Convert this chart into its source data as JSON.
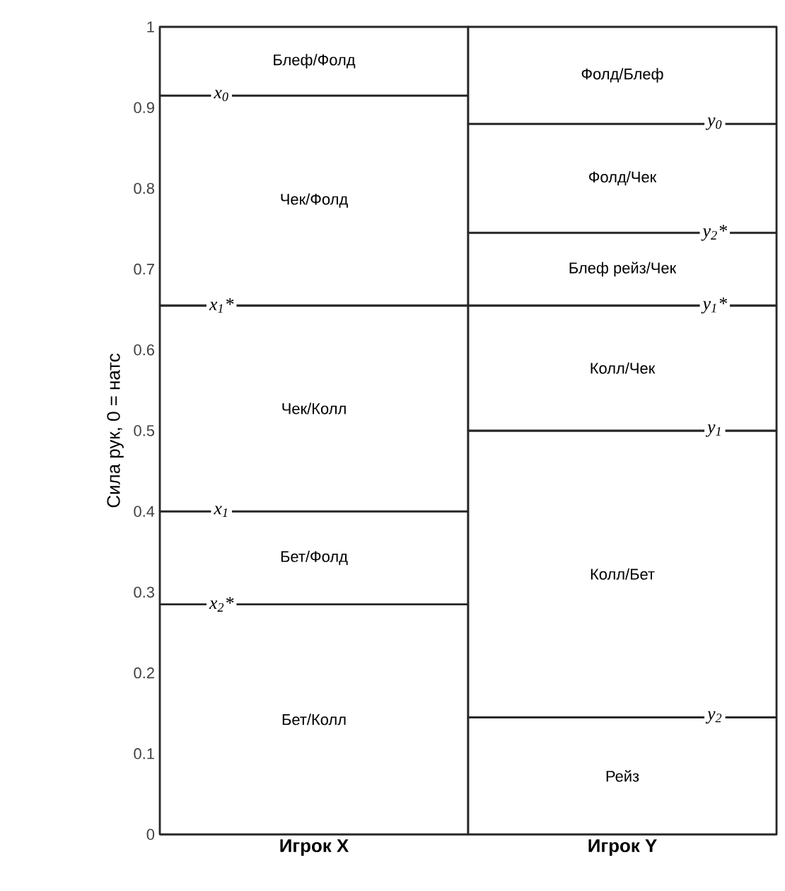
{
  "chart_data": {
    "type": "bar",
    "stacked": true,
    "ylabel": "Сила рук, 0 = натс",
    "categories": [
      "Игрок X",
      "Игрок Y"
    ],
    "series": [
      {
        "color": "#ffffff",
        "values": [
          0.285,
          0.145
        ]
      },
      {
        "color": "#ffffff",
        "values": [
          0.115,
          0.355
        ]
      },
      {
        "color": "#ffffff",
        "values": [
          0.255,
          0.155
        ]
      },
      {
        "color": "#ffffff",
        "values": [
          0.26,
          0.09
        ]
      },
      {
        "color": "#ffffff",
        "values": [
          0.085,
          0.135
        ]
      },
      {
        "color": "#ffffff",
        "values": [
          null,
          0.12
        ]
      }
    ],
    "ylim": [
      0,
      1
    ],
    "yticks": [
      0,
      0.1,
      0.2,
      0.3,
      0.4,
      0.5,
      0.6,
      0.7,
      0.8,
      0.9,
      1
    ],
    "annotations": [
      "Блеф/Фолд",
      "Чек/Фолд",
      "Чек/Колл",
      "Бет/Фолд",
      "Бет/Колл",
      "Фолд/Блеф",
      "Фолд/Чек",
      "Блеф рейз/Чек",
      "Колл/Чек",
      "Колл/Бет",
      "Рейз",
      "x$_{0}$",
      "x$_{1}$*",
      "x$_{1}$",
      "x$_{2}$*",
      "y$_{0}$",
      "y$_{2}$*",
      "y$_{1}$*",
      "y$_{1}$",
      "y$_{2}$"
    ]
  }
}
